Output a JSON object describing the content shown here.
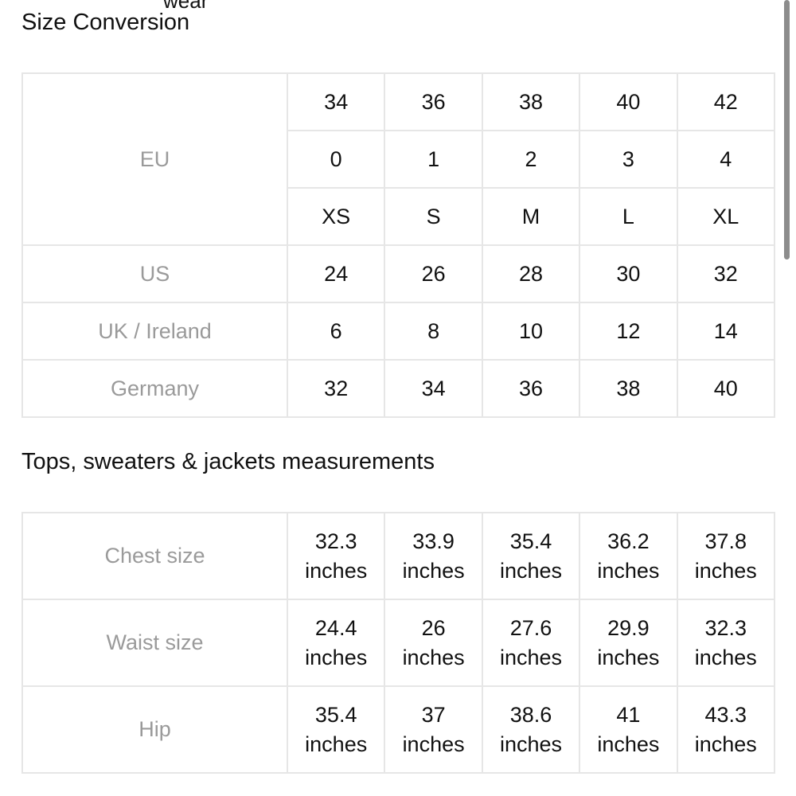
{
  "header_fragment": "wear",
  "sections": [
    {
      "title": "Size Conversion",
      "groups": [
        {
          "label": "EU",
          "rows": [
            [
              "34",
              "36",
              "38",
              "40",
              "42"
            ],
            [
              "0",
              "1",
              "2",
              "3",
              "4"
            ],
            [
              "XS",
              "S",
              "M",
              "L",
              "XL"
            ]
          ]
        },
        {
          "label": "US",
          "rows": [
            [
              "24",
              "26",
              "28",
              "30",
              "32"
            ]
          ]
        },
        {
          "label": "UK / Ireland",
          "rows": [
            [
              "6",
              "8",
              "10",
              "12",
              "14"
            ]
          ]
        },
        {
          "label": "Germany",
          "rows": [
            [
              "32",
              "34",
              "36",
              "38",
              "40"
            ]
          ]
        }
      ]
    },
    {
      "title": "Tops, sweaters & jackets measurements",
      "groups": [
        {
          "label": "Chest size",
          "rows": [
            [
              "32.3 inches",
              "33.9 inches",
              "35.4 inches",
              "36.2 inches",
              "37.8 inches"
            ]
          ]
        },
        {
          "label": "Waist size",
          "rows": [
            [
              "24.4 inches",
              "26 inches",
              "27.6 inches",
              "29.9 inches",
              "32.3 inches"
            ]
          ]
        },
        {
          "label": "Hip",
          "rows": [
            [
              "35.4 inches",
              "37 inches",
              "38.6 inches",
              "41 inches",
              "43.3 inches"
            ]
          ]
        }
      ]
    }
  ]
}
